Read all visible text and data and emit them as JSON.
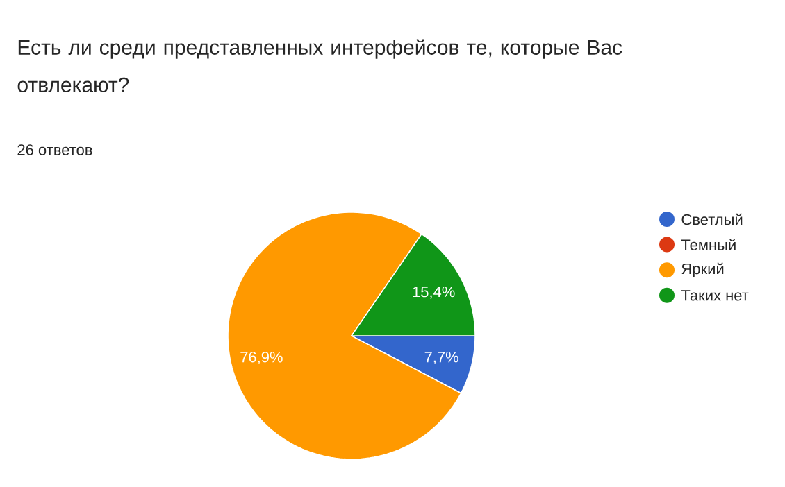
{
  "chart_data": {
    "type": "pie",
    "title": "Есть ли среди представленных интерфейсов те, которые Вас отвлекают?",
    "subtitle": "26 ответов",
    "categories": [
      "Светлый",
      "Темный",
      "Яркий",
      "Таких нет"
    ],
    "values": [
      7.7,
      0,
      76.9,
      15.4
    ],
    "colors": [
      "#3366cc",
      "#dc3912",
      "#ff9900",
      "#109618"
    ],
    "value_labels": [
      "7,7%",
      null,
      "76,9%",
      "15,4%"
    ],
    "legend": "right"
  }
}
